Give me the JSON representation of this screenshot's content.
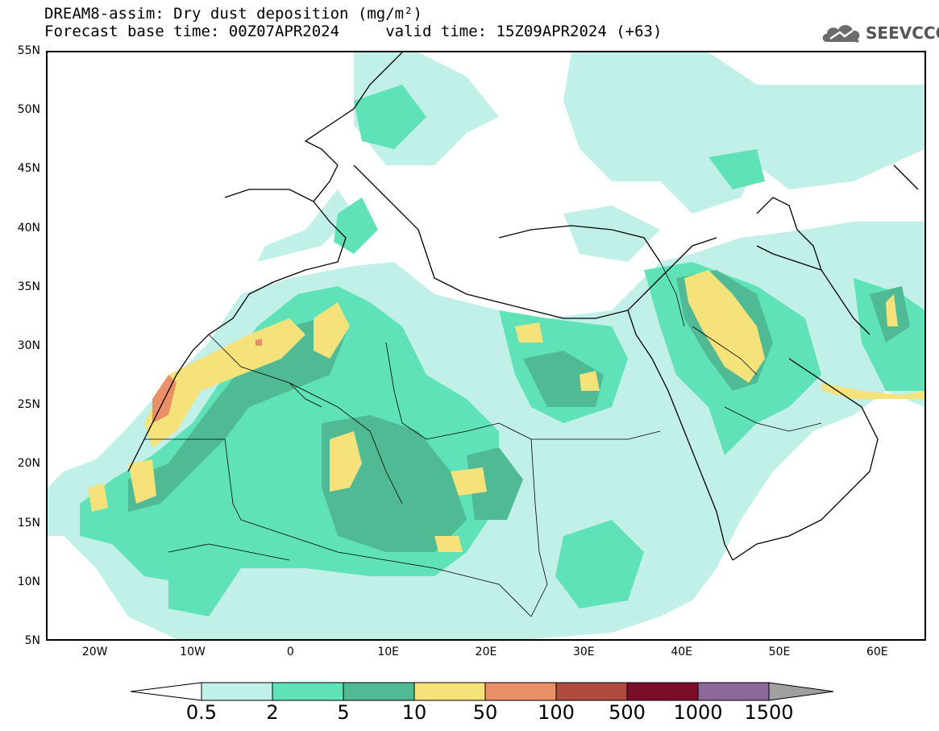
{
  "header": {
    "title_line1": "DREAM8-assim: Dry dust deposition (mg/m²)",
    "title_line2": "Forecast base time: 00Z07APR2024     valid time: 15Z09APR2024 (+63)",
    "logo_text": "SEEVCCC"
  },
  "map": {
    "lat_range": [
      5,
      55
    ],
    "lon_range": [
      -25,
      65
    ],
    "lat_labels": [
      {
        "lat": 55,
        "text": "55N"
      },
      {
        "lat": 50,
        "text": "50N"
      },
      {
        "lat": 45,
        "text": "45N"
      },
      {
        "lat": 40,
        "text": "40N"
      },
      {
        "lat": 35,
        "text": "35N"
      },
      {
        "lat": 30,
        "text": "30N"
      },
      {
        "lat": 25,
        "text": "25N"
      },
      {
        "lat": 20,
        "text": "20N"
      },
      {
        "lat": 15,
        "text": "15N"
      },
      {
        "lat": 10,
        "text": "10N"
      },
      {
        "lat": 5,
        "text": "5N"
      }
    ],
    "lon_labels": [
      {
        "lon": -20,
        "text": "20W"
      },
      {
        "lon": -10,
        "text": "10W"
      },
      {
        "lon": 0,
        "text": "0"
      },
      {
        "lon": 10,
        "text": "10E"
      },
      {
        "lon": 20,
        "text": "20E"
      },
      {
        "lon": 30,
        "text": "30E"
      },
      {
        "lon": 40,
        "text": "40E"
      },
      {
        "lon": 50,
        "text": "50E"
      },
      {
        "lon": 60,
        "text": "60E"
      }
    ]
  },
  "legend": {
    "levels": [
      "0.5",
      "2",
      "5",
      "10",
      "50",
      "100",
      "500",
      "1000",
      "1500"
    ],
    "colors": [
      "#c1f0e8",
      "#5fe2b8",
      "#4fba93",
      "#f6e27a",
      "#ea9067",
      "#b04c3e",
      "#7b0f2b",
      "#8e6a9c"
    ],
    "under_color": "#ffffff",
    "over_color": "#a0a0a0"
  },
  "colors": {
    "c1": "#c1f0e8",
    "c2": "#5fe2b8",
    "c3": "#4fba93",
    "c4": "#f6e27a",
    "c5": "#ea9067"
  }
}
